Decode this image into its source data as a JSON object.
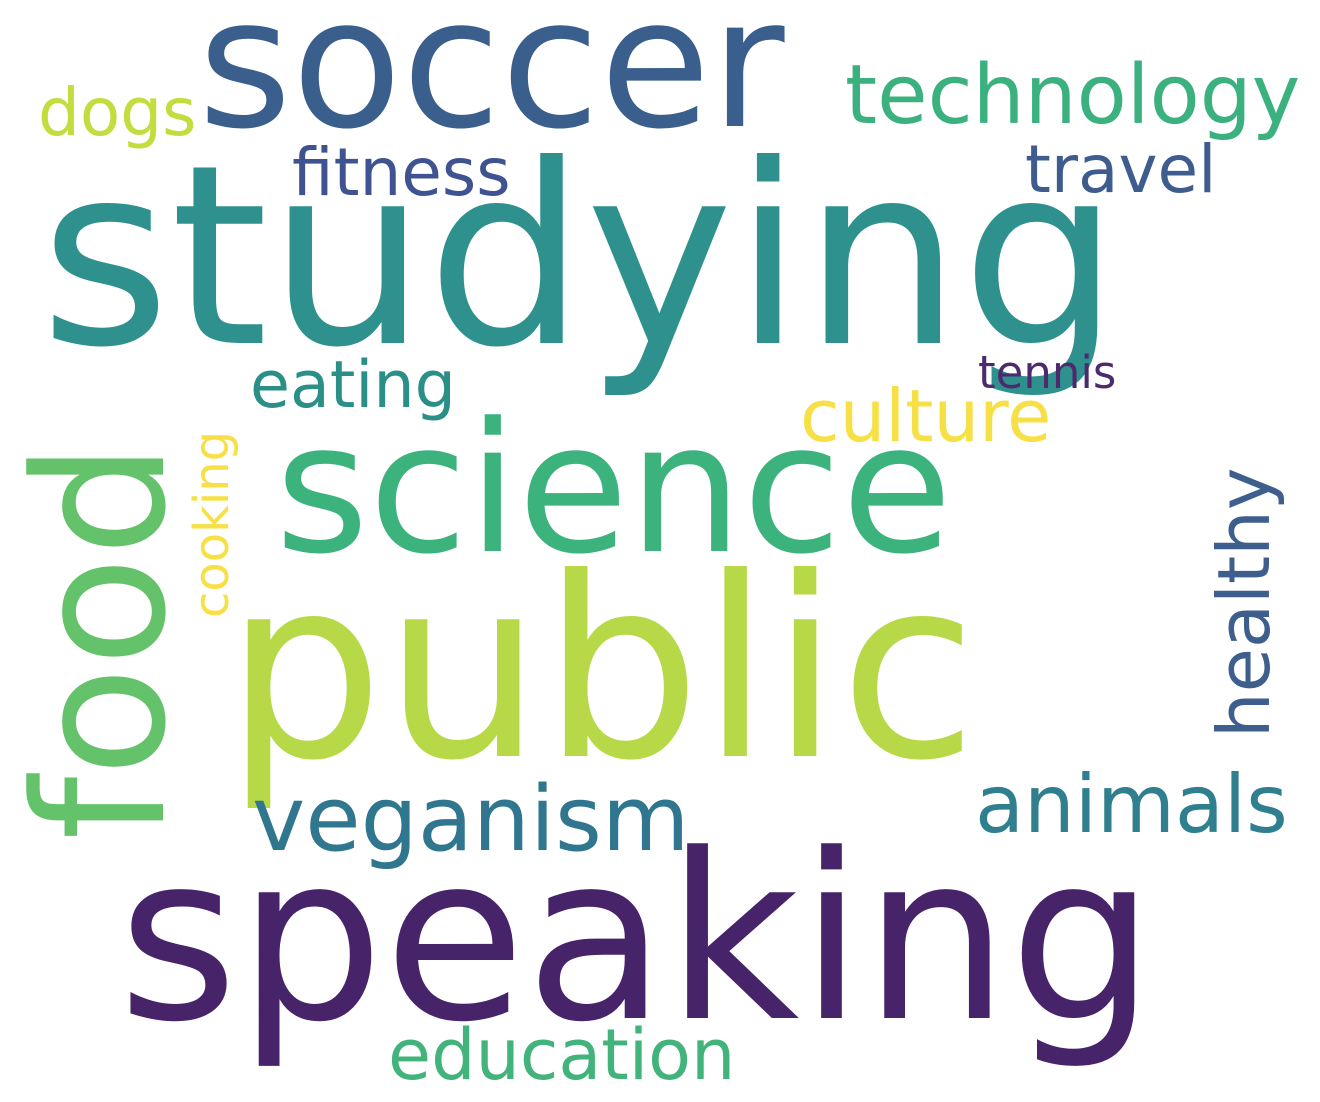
{
  "words": {
    "soccer": {
      "text": "soccer",
      "color": "#3a5f8d"
    },
    "technology": {
      "text": "technology",
      "color": "#3bb180"
    },
    "dogs": {
      "text": "dogs",
      "color": "#c3dc3e"
    },
    "fitness": {
      "text": "fitness",
      "color": "#3f5390"
    },
    "travel": {
      "text": "travel",
      "color": "#3e5c8e"
    },
    "studying": {
      "text": "studying",
      "color": "#2e918d"
    },
    "eating": {
      "text": "eating",
      "color": "#2a8f87"
    },
    "tennis": {
      "text": "tennis",
      "color": "#4d2a6e"
    },
    "culture": {
      "text": "culture",
      "color": "#f6e045"
    },
    "science": {
      "text": "science",
      "color": "#3cb37d"
    },
    "public": {
      "text": "public",
      "color": "#b7d947"
    },
    "veganism": {
      "text": "veganism",
      "color": "#2f768e"
    },
    "animals": {
      "text": "animals",
      "color": "#2f7f8e"
    },
    "speaking": {
      "text": "speaking",
      "color": "#47236a"
    },
    "education": {
      "text": "education",
      "color": "#42b37a"
    },
    "food": {
      "text": "food",
      "color": "#64c26a"
    },
    "cooking": {
      "text": "cooking",
      "color": "#f6e045"
    },
    "healthy": {
      "text": "healthy",
      "color": "#3e5f8e"
    }
  }
}
